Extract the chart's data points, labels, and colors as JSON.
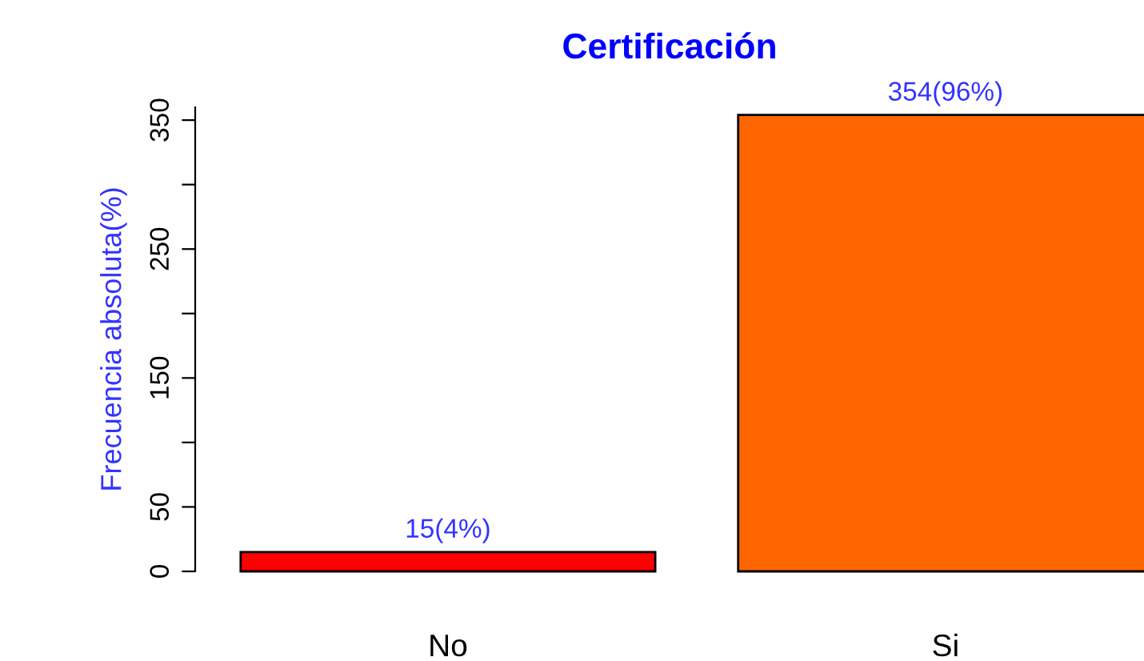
{
  "chart_data": {
    "type": "bar",
    "title": "Certificación",
    "ylabel": "Frecuencia absoluta(%)",
    "categories": [
      "No",
      "Si"
    ],
    "values": [
      15,
      354
    ],
    "colors": [
      "#ff0000",
      "#ff6600"
    ],
    "value_labels": [
      "15(4%)",
      "354(96%)"
    ],
    "ylim": [
      0,
      360
    ],
    "yticks": [
      0,
      50,
      {
        "value": 100,
        "label": null
      },
      150,
      {
        "value": 200,
        "label": null
      },
      250,
      {
        "value": 300,
        "label": null
      },
      350
    ],
    "grid": false,
    "legend": false
  }
}
